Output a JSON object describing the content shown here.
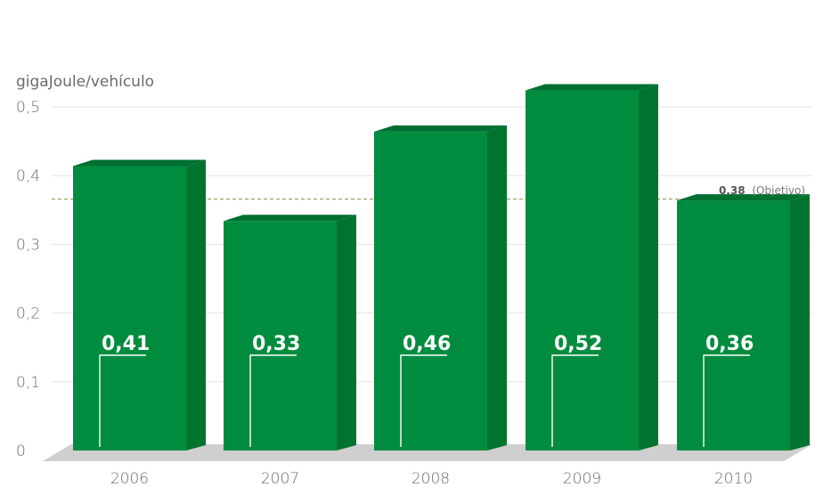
{
  "chart_data": {
    "type": "bar",
    "title": "",
    "ylabel": "gigaJoule/vehículo",
    "xlabel": "",
    "categories": [
      "2006",
      "2007",
      "2008",
      "2009",
      "2010"
    ],
    "values": [
      0.41,
      0.33,
      0.46,
      0.52,
      0.36
    ],
    "data_labels": [
      "0,41",
      "0,33",
      "0,46",
      "0,52",
      "0,36"
    ],
    "ylim": [
      0,
      0.5
    ],
    "yticks": [
      0,
      0.1,
      0.2,
      0.3,
      0.4,
      0.5
    ],
    "ytick_labels": [
      "0",
      "0,1",
      "0,2",
      "0,3",
      "0,4",
      "0,5"
    ],
    "grid": true,
    "target": {
      "value": 0.38,
      "value_label": "0,38",
      "label": "(Objetivo)"
    },
    "colors": {
      "bar_front": "#008c3e",
      "bar_top": "#006f31",
      "bar_side": "#00742f",
      "floor": "#cfcfcf",
      "target_line": "#9ca36a",
      "grid": "#e3e3e3"
    }
  }
}
